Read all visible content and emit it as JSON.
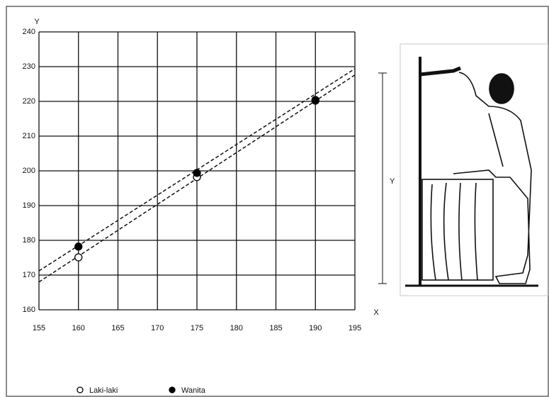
{
  "chart_data": {
    "type": "scatter",
    "x_label": "X",
    "y_label": "Y",
    "xlim": [
      155,
      195
    ],
    "xticks": [
      155,
      160,
      165,
      170,
      175,
      180,
      185,
      190,
      195
    ],
    "ylim": [
      160,
      240
    ],
    "yticks": [
      160,
      170,
      180,
      190,
      200,
      210,
      220,
      230,
      240
    ],
    "grid": true,
    "series": [
      {
        "name": "Laki-laki",
        "color": "#000000",
        "marker": "open",
        "x": [
          160,
          175,
          190
        ],
        "values": [
          175.1,
          198.2,
          220.2
        ]
      },
      {
        "name": "Wanita",
        "color": "#000000",
        "marker": "filled",
        "x": [
          160,
          175,
          190
        ],
        "values": [
          178.2,
          199.4,
          220.4
        ]
      }
    ],
    "lines": [
      {
        "x": [
          155,
          195
        ],
        "values": [
          171.2,
          229.4
        ],
        "style": "dashed"
      },
      {
        "x": [
          155,
          195
        ],
        "values": [
          168,
          227.6
        ],
        "style": "dashed"
      }
    ],
    "illustration_label": "Y"
  }
}
